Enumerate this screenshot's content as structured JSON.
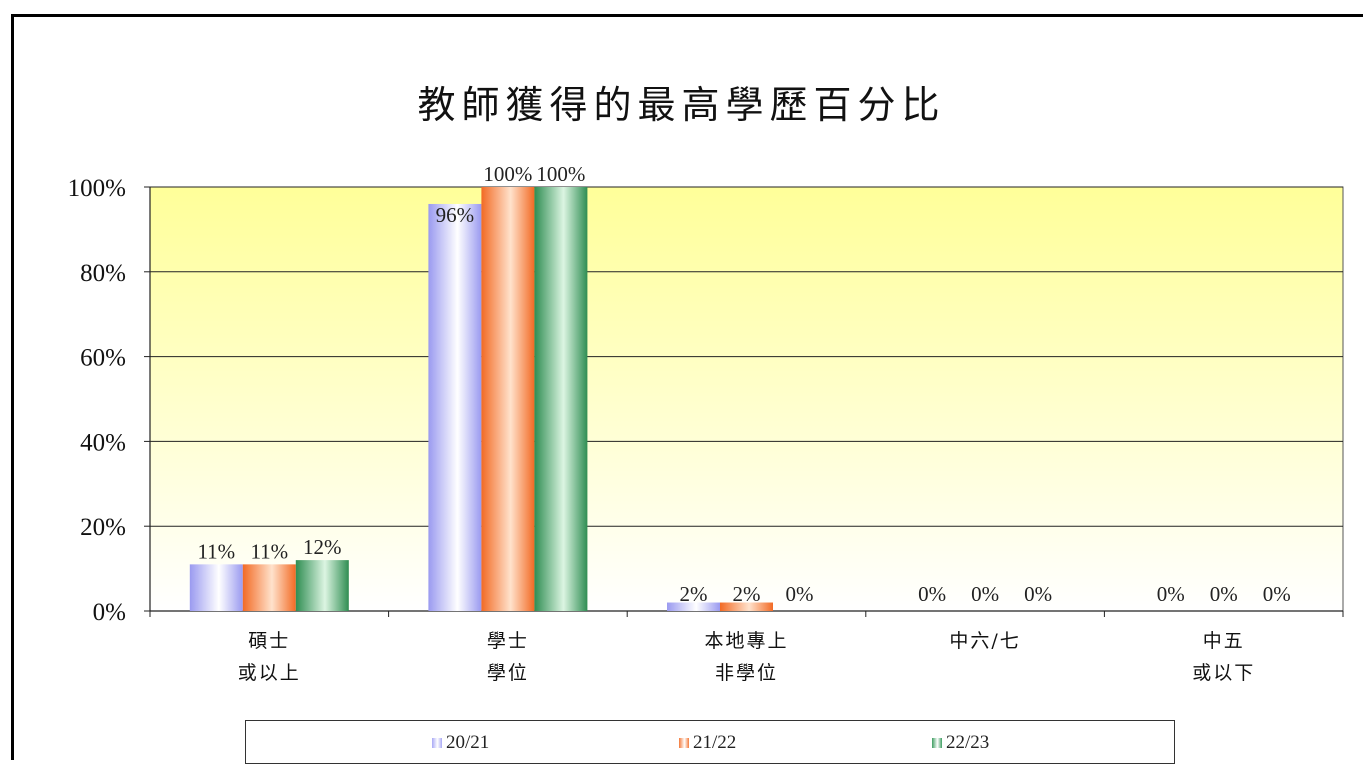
{
  "chart_data": {
    "type": "bar",
    "title": "教師獲得的最高學歷百分比",
    "categories": [
      [
        "碩士",
        "或以上"
      ],
      [
        "學士",
        "學位"
      ],
      [
        "本地專上",
        "非學位"
      ],
      [
        "中六/七"
      ],
      [
        "中五",
        "或以下"
      ]
    ],
    "series": [
      {
        "name": "20/21",
        "values": [
          11,
          96,
          2,
          0,
          0
        ],
        "labels": [
          "11%",
          "96%",
          "2%",
          "0%",
          "0%"
        ],
        "color": "#a9a9f5"
      },
      {
        "name": "21/22",
        "values": [
          11,
          100,
          2,
          0,
          0
        ],
        "labels": [
          "11%",
          "100%",
          "2%",
          "0%",
          "0%"
        ],
        "color": "#f47a3a"
      },
      {
        "name": "22/23",
        "values": [
          12,
          100,
          0,
          0,
          0
        ],
        "labels": [
          "12%",
          "100%",
          "0%",
          "0%",
          "0%"
        ],
        "color": "#3f9e62"
      }
    ],
    "yticks": [
      "0%",
      "20%",
      "40%",
      "60%",
      "80%",
      "100%"
    ],
    "ylim": [
      0,
      100
    ],
    "grid": true,
    "legend_position": "bottom"
  }
}
